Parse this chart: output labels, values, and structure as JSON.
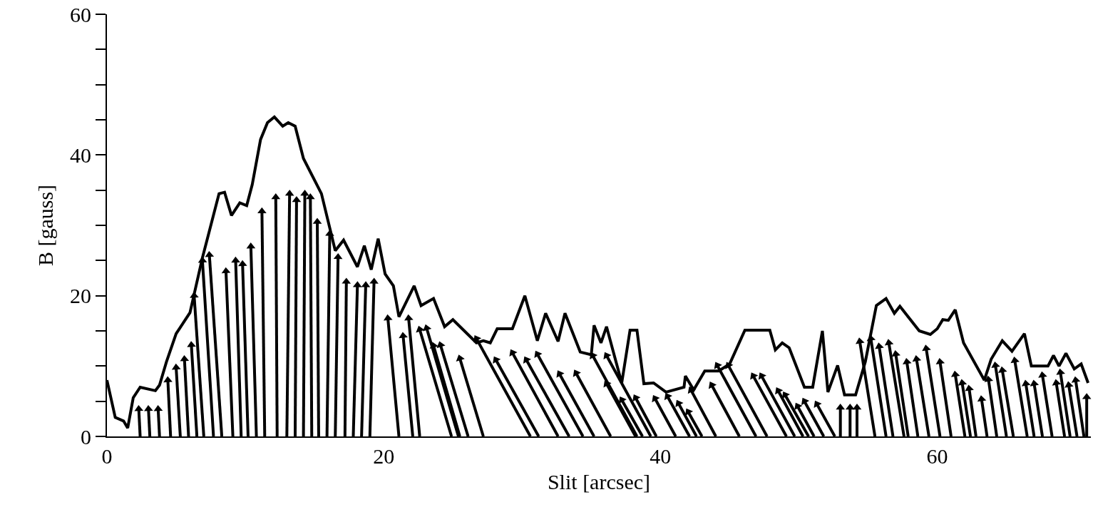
{
  "chart_data": {
    "type": "line",
    "xlabel": "Slit [arcsec]",
    "ylabel": "B [gauss]",
    "xlim": [
      0,
      71.1
    ],
    "ylim": [
      0,
      60
    ],
    "xticks": [
      0,
      20,
      40,
      60
    ],
    "yticks": [
      0,
      {
        "value": 5,
        "label": null
      },
      {
        "value": 10,
        "label": null
      },
      {
        "value": 15,
        "label": null
      },
      20,
      {
        "value": 25,
        "label": null
      },
      {
        "value": 30,
        "label": null
      },
      {
        "value": 35,
        "label": null
      },
      40,
      {
        "value": 45,
        "label": null
      },
      {
        "value": 50,
        "label": null
      },
      {
        "value": 55,
        "label": null
      },
      60
    ],
    "grid": false,
    "series": [
      {
        "color": "#000000",
        "line_style": "solid",
        "x": [
          0,
          0.6,
          1.2,
          1.5,
          1.9,
          2.4,
          3.5,
          3.8,
          4.3,
          5.0,
          6.0,
          6.9,
          8.1,
          8.5,
          9.0,
          9.6,
          10.1,
          10.5,
          11.1,
          11.6,
          12.1,
          12.7,
          13.1,
          13.6,
          14.2,
          15.5,
          16.5,
          17.1,
          18.1,
          18.6,
          19.1,
          19.6,
          20.1,
          20.7,
          21.1,
          22.2,
          22.7,
          23.6,
          24.4,
          25.0,
          26.7,
          27.2,
          27.7,
          28.2,
          29.3,
          30.2,
          31.1,
          31.7,
          32.6,
          33.1,
          34.2,
          35.0,
          35.2,
          35.7,
          36.1,
          37.2,
          37.8,
          38.3,
          38.8,
          39.5,
          40.4,
          41.7,
          41.8,
          42.4,
          43.2,
          44.2,
          45.0,
          46.1,
          47.9,
          48.3,
          48.8,
          49.3,
          50.4,
          51.0,
          51.7,
          52.1,
          52.8,
          53.3,
          54.1,
          54.8,
          55.6,
          56.3,
          56.9,
          57.3,
          58.7,
          59.5,
          60.0,
          60.4,
          60.8,
          61.3,
          61.9,
          63.4,
          63.9,
          64.7,
          65.4,
          66.3,
          66.8,
          68.0,
          68.4,
          68.8,
          69.3,
          69.9,
          70.4,
          70.9
        ],
        "values": [
          8,
          2.7,
          2.2,
          1.2,
          5.5,
          7,
          6.5,
          7.3,
          10.6,
          14.6,
          17.6,
          25.4,
          34.5,
          34.7,
          31.4,
          33.2,
          32.8,
          35.8,
          42.2,
          44.6,
          45.4,
          44.1,
          44.6,
          44.1,
          39.5,
          34.5,
          26.4,
          27.9,
          24.1,
          27.1,
          23.7,
          28.1,
          23.1,
          21.4,
          17,
          21.4,
          18.6,
          19.6,
          15.6,
          16.6,
          13.3,
          13.6,
          13.3,
          15.3,
          15.3,
          20,
          13.6,
          17.5,
          13.5,
          17.5,
          12,
          11.6,
          15.8,
          13.3,
          15.6,
          7.6,
          15.1,
          15.1,
          7.5,
          7.6,
          6.3,
          7,
          8.6,
          6.6,
          9.3,
          9.3,
          10.3,
          15.1,
          15.1,
          12.3,
          13.3,
          12.6,
          7,
          7,
          15,
          6.3,
          10.1,
          5.9,
          5.9,
          10.6,
          18.6,
          19.6,
          17.5,
          18.5,
          15,
          14.5,
          15.3,
          16.6,
          16.5,
          18,
          13.3,
          8,
          11,
          13.6,
          12.1,
          14.6,
          10,
          10,
          11.5,
          10,
          11.8,
          9.6,
          10.3,
          7.6
        ]
      },
      {
        "type": "scatter",
        "color": "#000000",
        "marker": "triangle",
        "x": [
          2.3,
          3.0,
          3.7,
          4.4,
          5.0,
          5.6,
          6.1,
          6.3,
          6.9,
          7.4,
          8.6,
          9.3,
          9.8,
          10.4,
          11.2,
          12.2,
          13.2,
          13.7,
          14.3,
          14.7,
          15.2,
          16.1,
          16.7,
          17.3,
          18.1,
          18.7,
          19.3,
          20.3,
          21.4,
          21.8,
          22.6,
          23.1,
          23.6,
          24.1,
          25.5,
          26.7,
          28.1,
          29.3,
          30.3,
          31.1,
          32.7,
          33.9,
          35.1,
          36.1,
          36.1,
          37.2,
          38.2,
          39.6,
          40.5,
          41.3,
          42.0,
          42.2,
          43.7,
          44.1,
          44.9,
          46.7,
          47.3,
          48.5,
          49.0,
          49.9,
          50.4,
          51.3,
          53.0,
          53.7,
          54.2,
          54.4,
          55.2,
          55.8,
          56.5,
          57.0,
          57.8,
          58.5,
          59.2,
          60.2,
          61.3,
          61.8,
          62.3,
          63.2,
          63.7,
          64.2,
          64.7,
          65.6,
          66.4,
          67.0,
          67.6,
          68.6,
          68.9,
          69.5,
          70.0,
          70.8
        ],
        "values": [
          3.9,
          3.9,
          3.9,
          8.0,
          9.8,
          11.0,
          13.0,
          20.0,
          25.0,
          25.8,
          23.5,
          25.0,
          24.5,
          27.0,
          32.0,
          34.0,
          34.5,
          33.6,
          34.5,
          34.0,
          30.5,
          28.8,
          25.5,
          22.0,
          21.5,
          21.5,
          22.0,
          16.8,
          14.3,
          16.8,
          15.2,
          15.4,
          12.9,
          13.0,
          11.1,
          13.9,
          10.9,
          11.9,
          10.9,
          11.7,
          8.9,
          9.0,
          11.5,
          11.5,
          7.5,
          5.2,
          5.5,
          5.4,
          5.7,
          4.7,
          3.5,
          6.6,
          7.3,
          10.1,
          10.1,
          8.6,
          8.6,
          6.5,
          5.9,
          4.3,
          5.0,
          4.6,
          4.1,
          4.1,
          4.1,
          13.5,
          13.9,
          12.8,
          13.3,
          11.7,
          10.6,
          11.0,
          12.5,
          10.6,
          8.8,
          7.6,
          6.8,
          5.3,
          8.1,
          10.1,
          9.4,
          10.8,
          7.5,
          7.5,
          8.7,
          7.6,
          9.1,
          7.3,
          8.0,
          5.6
        ]
      },
      {
        "type": "line",
        "color": "#000000",
        "line_style": "solid",
        "x": [
          2.4,
          2.3,
          null,
          3.1,
          3.0,
          null,
          3.8,
          3.7,
          null,
          4.6,
          4.4,
          null,
          5.3,
          5.0,
          null,
          5.9,
          5.6,
          null,
          6.5,
          6.1,
          null,
          7.0,
          6.3,
          null,
          7.7,
          6.9,
          null,
          8.3,
          7.4,
          null,
          9.1,
          8.6,
          null,
          9.7,
          9.3,
          null,
          10.2,
          9.8,
          null,
          10.8,
          10.4,
          null,
          11.4,
          11.2,
          null,
          12.3,
          12.2,
          null,
          13.0,
          13.2,
          null,
          13.6,
          13.7,
          null,
          14.2,
          14.3,
          null,
          14.8,
          14.7,
          null,
          15.3,
          15.2,
          null,
          15.9,
          16.1,
          null,
          16.5,
          16.7,
          null,
          17.2,
          17.3,
          null,
          17.8,
          18.1,
          null,
          18.4,
          18.7,
          null,
          19.0,
          19.3,
          null,
          21.1,
          20.3,
          null,
          22.1,
          21.4,
          null,
          22.6,
          21.8,
          null,
          24.9,
          22.6,
          null,
          25.4,
          23.1,
          null,
          25.5,
          23.6,
          null,
          26.1,
          24.1,
          null,
          27.2,
          25.5,
          null,
          30.6,
          26.7,
          null,
          31.2,
          28.1,
          null,
          32.6,
          29.3,
          null,
          33.4,
          30.3,
          null,
          34.4,
          31.1,
          null,
          35.2,
          32.7,
          null,
          36.4,
          33.9,
          null,
          38.3,
          35.1,
          null,
          39.3,
          36.1,
          null,
          38.2,
          36.1,
          null,
          38.7,
          37.2,
          null,
          39.7,
          38.2,
          null,
          41.1,
          39.6,
          null,
          42.1,
          40.5,
          null,
          42.6,
          41.3,
          null,
          43.0,
          42.0,
          null,
          44.0,
          42.2,
          null,
          45.7,
          43.7,
          null,
          46.9,
          44.1,
          null,
          47.7,
          44.9,
          null,
          49.1,
          46.7,
          null,
          49.7,
          47.3,
          null,
          50.3,
          48.5,
          null,
          50.7,
          49.0,
          null,
          51.1,
          49.9,
          null,
          51.8,
          50.4,
          null,
          52.6,
          51.3,
          null,
          53.0,
          53.0,
          null,
          53.7,
          53.7,
          null,
          54.2,
          54.2,
          null,
          55.5,
          54.4,
          null,
          56.3,
          55.2,
          null,
          56.8,
          55.8,
          null,
          57.6,
          56.5,
          null,
          57.9,
          57.0,
          null,
          58.6,
          57.8,
          null,
          59.4,
          58.5,
          null,
          60.2,
          59.2,
          null,
          61.0,
          60.2,
          null,
          62.0,
          61.3,
          null,
          62.4,
          61.8,
          null,
          62.8,
          62.3,
          null,
          63.6,
          63.2,
          null,
          64.3,
          63.7,
          null,
          65.0,
          64.2,
          null,
          65.5,
          64.7,
          null,
          66.5,
          65.6,
          null,
          67.0,
          66.4,
          null,
          67.6,
          67.0,
          null,
          68.3,
          67.6,
          null,
          69.2,
          68.6,
          null,
          69.6,
          68.9,
          null,
          70.1,
          69.5,
          null,
          70.6,
          70.0,
          null,
          70.8,
          70.8
        ],
        "values": [
          0,
          3.9,
          null,
          0,
          3.9,
          null,
          0,
          3.9,
          null,
          0,
          8.0,
          null,
          0,
          9.8,
          null,
          0,
          11.0,
          null,
          0,
          13.0,
          null,
          0,
          20.0,
          null,
          0,
          25.0,
          null,
          0,
          25.8,
          null,
          0,
          23.5,
          null,
          0,
          25.0,
          null,
          0,
          24.5,
          null,
          0,
          27.0,
          null,
          0,
          32.0,
          null,
          0,
          34.0,
          null,
          0,
          34.5,
          null,
          0,
          33.6,
          null,
          0,
          34.5,
          null,
          0,
          34.0,
          null,
          0,
          30.5,
          null,
          0,
          28.8,
          null,
          0,
          25.5,
          null,
          0,
          22.0,
          null,
          0,
          21.5,
          null,
          0,
          21.5,
          null,
          0,
          22.0,
          null,
          0,
          16.8,
          null,
          0,
          14.3,
          null,
          0,
          16.8,
          null,
          0,
          15.2,
          null,
          0,
          15.4,
          null,
          0,
          12.9,
          null,
          0,
          13.0,
          null,
          0,
          11.1,
          null,
          0,
          13.9,
          null,
          0,
          10.9,
          null,
          0,
          11.9,
          null,
          0,
          10.9,
          null,
          0,
          11.7,
          null,
          0,
          8.9,
          null,
          0,
          9.0,
          null,
          0,
          11.5,
          null,
          0,
          11.5,
          null,
          0,
          7.5,
          null,
          0,
          5.2,
          null,
          0,
          5.5,
          null,
          0,
          5.4,
          null,
          0,
          5.7,
          null,
          0,
          4.7,
          null,
          0,
          3.5,
          null,
          0,
          6.6,
          null,
          0,
          7.3,
          null,
          0,
          10.1,
          null,
          0,
          10.1,
          null,
          0,
          8.6,
          null,
          0,
          8.6,
          null,
          0,
          6.5,
          null,
          0,
          5.9,
          null,
          0,
          4.3,
          null,
          0,
          5.0,
          null,
          0,
          4.6,
          null,
          0,
          4.1,
          null,
          0,
          4.1,
          null,
          0,
          4.1,
          null,
          0,
          13.5,
          null,
          0,
          13.9,
          null,
          0,
          12.8,
          null,
          0,
          13.3,
          null,
          0,
          11.7,
          null,
          0,
          10.6,
          null,
          0,
          11.0,
          null,
          0,
          12.5,
          null,
          0,
          10.6,
          null,
          0,
          8.8,
          null,
          0,
          7.6,
          null,
          0,
          6.8,
          null,
          0,
          5.3,
          null,
          0,
          8.1,
          null,
          0,
          10.1,
          null,
          0,
          9.4,
          null,
          0,
          10.8,
          null,
          0,
          7.5,
          null,
          0,
          7.5,
          null,
          0,
          8.7,
          null,
          0,
          7.6,
          null,
          0,
          9.1,
          null,
          0,
          7.3,
          null,
          0,
          8.0,
          null,
          0,
          5.6
        ]
      }
    ]
  }
}
